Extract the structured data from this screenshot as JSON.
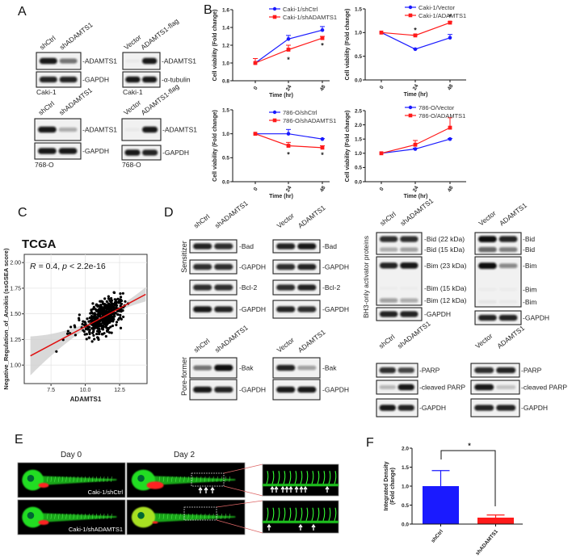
{
  "panel_labels": {
    "A": "A",
    "B": "B",
    "C": "C",
    "D": "D",
    "E": "E",
    "F": "F"
  },
  "blots": [
    {
      "lanes": [
        "shCtrl",
        "shADAMTS1"
      ],
      "cell_line": "Caki-1",
      "rows": [
        {
          "labels": [
            "ADAMTS1"
          ],
          "bands": [
            [
              0.95,
              0.55
            ]
          ]
        },
        {
          "labels": [
            "GAPDH"
          ],
          "bands": [
            [
              0.9,
              0.9
            ]
          ]
        }
      ]
    },
    {
      "lanes": [
        "Vector",
        "ADAMTS1-flag"
      ],
      "cell_line": "Caki-1",
      "rows": [
        {
          "labels": [
            "ADAMTS1"
          ],
          "bands": [
            [
              0.03,
              0.95
            ]
          ]
        },
        {
          "labels": [
            "α-tubulin"
          ],
          "bands": [
            [
              0.95,
              0.95
            ]
          ]
        }
      ]
    },
    {
      "lanes": [
        "shCtrl",
        "shADAMTS1"
      ],
      "cell_line": "768-O",
      "rows": [
        {
          "labels": [
            "ADAMTS1"
          ],
          "bands": [
            [
              0.95,
              0.3
            ]
          ]
        },
        {
          "labels": [
            "GAPDH"
          ],
          "bands": [
            [
              0.95,
              0.95
            ]
          ]
        }
      ]
    },
    {
      "lanes": [
        "Vector",
        "ADAMTS1-flag"
      ],
      "cell_line": "768-O",
      "rows": [
        {
          "labels": [
            "ADAMTS1"
          ],
          "bands": [
            [
              0.03,
              0.95
            ]
          ]
        },
        {
          "labels": [
            "GAPDH"
          ],
          "bands": [
            [
              0.95,
              0.9
            ]
          ]
        }
      ]
    },
    {
      "lanes": [
        "shCtrl",
        "shADAMTS1"
      ],
      "rows": [
        {
          "labels": [
            "Bad"
          ],
          "bands": [
            [
              0.9,
              0.85
            ]
          ]
        },
        {
          "labels": [
            "GAPDH"
          ],
          "bands": [
            [
              0.85,
              0.85
            ]
          ]
        },
        {
          "labels": [
            "Bcl-2"
          ],
          "bands": [
            [
              0.85,
              0.85
            ]
          ]
        },
        {
          "labels": [
            "GAPDH"
          ],
          "bands": [
            [
              0.95,
              0.9
            ]
          ]
        }
      ]
    },
    {
      "lanes": [
        "Vector",
        "ADAMTS1"
      ],
      "rows": [
        {
          "labels": [
            "Bad"
          ],
          "bands": [
            [
              0.9,
              0.95
            ]
          ]
        },
        {
          "labels": [
            "GAPDH"
          ],
          "bands": [
            [
              0.85,
              0.9
            ]
          ]
        },
        {
          "labels": [
            "Bcl-2"
          ],
          "bands": [
            [
              0.85,
              0.9
            ]
          ]
        },
        {
          "labels": [
            "GAPDH"
          ],
          "bands": [
            [
              0.9,
              0.85
            ]
          ]
        }
      ]
    },
    {
      "lanes": [
        "shCtrl",
        "shADAMTS1"
      ],
      "rows": [
        {
          "labels": [
            "Bak"
          ],
          "bands": [
            [
              0.55,
              1.0
            ]
          ]
        },
        {
          "labels": [
            "GAPDH"
          ],
          "bands": [
            [
              0.95,
              0.9
            ]
          ]
        }
      ]
    },
    {
      "lanes": [
        "Vector",
        "ADAMTS1"
      ],
      "rows": [
        {
          "labels": [
            "Bak"
          ],
          "bands": [
            [
              0.9,
              0.35
            ]
          ]
        },
        {
          "labels": [
            "GAPDH"
          ],
          "bands": [
            [
              0.95,
              0.95
            ]
          ]
        }
      ]
    },
    {
      "lanes": [
        "shCtrl",
        "shADAMTS1"
      ],
      "rows": [
        {
          "labels": [
            "Bid (22 kDa)",
            "Bid (15 kDa)"
          ],
          "bands": [
            [
              0.85,
              0.85
            ],
            [
              0.3,
              0.35
            ]
          ]
        },
        {
          "labels": [
            "Bim (23 kDa)",
            "Bim (15 kDa)",
            "Bim (12 kDa)"
          ],
          "bands": [
            [
              0.9,
              0.95
            ],
            [
              0.02,
              0.02
            ],
            [
              0.35,
              0.3
            ]
          ]
        },
        {
          "labels": [
            "GAPDH"
          ],
          "bands": [
            [
              0.9,
              0.9
            ]
          ]
        }
      ]
    },
    {
      "lanes": [
        "Vector",
        "ADAMTS1"
      ],
      "rows": [
        {
          "labels": [
            "Bid",
            "Bid"
          ],
          "bands": [
            [
              1.0,
              0.9
            ],
            [
              0.6,
              0.5
            ]
          ]
        },
        {
          "labels": [
            "Bim",
            "Bim",
            "Bim"
          ],
          "bands": [
            [
              1.0,
              0.45
            ],
            [
              0.02,
              0.02
            ],
            [
              0.05,
              0.03
            ]
          ]
        },
        {
          "labels": [
            "GAPDH"
          ],
          "bands": [
            [
              0.9,
              0.9
            ]
          ]
        }
      ]
    },
    {
      "lanes": [
        "shCtrl",
        "shADAMTS1"
      ],
      "rows": [
        {
          "labels": [
            "PARP"
          ],
          "bands": [
            [
              0.85,
              0.75
            ]
          ]
        },
        {
          "labels": [
            "cleaved PARP"
          ],
          "bands": [
            [
              0.25,
              0.95
            ]
          ]
        },
        {
          "labels": [
            "GAPDH"
          ],
          "bands": [
            [
              0.95,
              0.9
            ]
          ]
        }
      ]
    },
    {
      "lanes": [
        "Vector",
        "ADAMTS1"
      ],
      "rows": [
        {
          "labels": [
            "PARP"
          ],
          "bands": [
            [
              0.85,
              0.9
            ]
          ]
        },
        {
          "labels": [
            "cleaved PARP"
          ],
          "bands": [
            [
              0.95,
              0.2
            ]
          ]
        },
        {
          "labels": [
            "GAPDH"
          ],
          "bands": [
            [
              0.9,
              0.9
            ]
          ]
        }
      ]
    }
  ],
  "panel_d": {
    "sensitizer_label": "Sensitizer",
    "pore_former_label": "Pore-former",
    "bh3_label": "BH3-only activator proteins"
  },
  "panel_e": {
    "day0_label": "Day 0",
    "day2_label": "Day 2",
    "row_labels": [
      "Caki-1/shCtrl",
      "Caki-1/shADAMTS1"
    ],
    "arrow_counts": {
      "shCtrl_day2": 3,
      "shCtrl_zoom": 9,
      "shADAMTS1_zoom": 3
    }
  },
  "colors": {
    "blue": "#1a1aff",
    "red": "#ff1a1a",
    "fish_green": "#22dd22",
    "regression": "#e01010"
  },
  "chart_data": [
    {
      "type": "line",
      "x": [
        "0",
        "24",
        "48"
      ],
      "xlabel": "Time (hr)",
      "ylabel": "Cell viability (Fold change)",
      "ylim": [
        0.8,
        1.6
      ],
      "yticks": [
        "0.8",
        "1.0",
        "1.2",
        "1.4",
        "1.6"
      ],
      "series": [
        {
          "name": "Caki-1/shCtrl",
          "color": "#1a1aff",
          "marker": "circle",
          "values": [
            1.0,
            1.27,
            1.37
          ],
          "errors": [
            0.0,
            0.04,
            0.04
          ]
        },
        {
          "name": "Caki-1/shADAMTS1",
          "color": "#ff1a1a",
          "marker": "square",
          "values": [
            1.0,
            1.15,
            1.28
          ],
          "errors": [
            0.05,
            0.05,
            0.02
          ]
        }
      ],
      "significance": {
        "symbol": "*",
        "x_index": [
          1,
          2
        ],
        "placement": "below"
      }
    },
    {
      "type": "line",
      "x": [
        "0",
        "24",
        "48"
      ],
      "xlabel": "Time (hr)",
      "ylabel": "Cell viability (Fold change)",
      "ylim": [
        0.0,
        1.5
      ],
      "yticks": [
        "0.0",
        "0.5",
        "1.0",
        "1.5"
      ],
      "series": [
        {
          "name": "Caki-1/Vector",
          "color": "#1a1aff",
          "marker": "circle",
          "values": [
            1.0,
            0.65,
            0.89
          ],
          "errors": [
            0.0,
            0.01,
            0.07
          ]
        },
        {
          "name": "Caki-1/ADAMTS1",
          "color": "#ff1a1a",
          "marker": "square",
          "values": [
            1.0,
            0.94,
            1.21
          ],
          "errors": [
            0.0,
            0.01,
            0.02
          ]
        }
      ],
      "significance": {
        "symbol": "*",
        "x_index": [
          1,
          2
        ],
        "placement": "above"
      }
    },
    {
      "type": "line",
      "x": [
        "0",
        "24",
        "48"
      ],
      "xlabel": "Time (hr)",
      "ylabel": "Cell viability (Fold change)",
      "ylim": [
        0.0,
        1.5
      ],
      "yticks": [
        "0.0",
        "0.5",
        "1.0",
        "1.5"
      ],
      "series": [
        {
          "name": "786-O/shCtrl",
          "color": "#1a1aff",
          "marker": "circle",
          "values": [
            1.0,
            1.0,
            0.89
          ],
          "errors": [
            0.0,
            0.09,
            0.01
          ]
        },
        {
          "name": "786-O/shADAMTS1",
          "color": "#ff1a1a",
          "marker": "square",
          "values": [
            1.0,
            0.75,
            0.71
          ],
          "errors": [
            0.0,
            0.07,
            0.04
          ]
        }
      ],
      "significance": {
        "symbol": "*",
        "x_index": [
          1,
          2
        ],
        "placement": "below"
      }
    },
    {
      "type": "line",
      "x": [
        "0",
        "24",
        "48"
      ],
      "xlabel": "Time (hr)",
      "ylabel": "Cell viability (Fold change)",
      "ylim": [
        0.0,
        2.5
      ],
      "yticks": [
        "0.0",
        "0.5",
        "1.0",
        "1.5",
        "2.0",
        "2.5"
      ],
      "series": [
        {
          "name": "786-O/Vector",
          "color": "#1a1aff",
          "marker": "circle",
          "values": [
            1.0,
            1.15,
            1.5
          ],
          "errors": [
            0.0,
            0.03,
            0.02
          ]
        },
        {
          "name": "786-O/ADAMTS1",
          "color": "#ff1a1a",
          "marker": "square",
          "values": [
            1.0,
            1.3,
            1.9
          ],
          "errors": [
            0.0,
            0.15,
            0.35
          ]
        }
      ]
    },
    {
      "type": "scatter",
      "title": "TCGA",
      "xlabel": "ADAMTS1",
      "ylabel": "Negative_Regulation_of_Anoikis (ssGSEA score)",
      "annotation": {
        "r_label": "R",
        "r_value": "= 0.4,",
        "p_label": "p",
        "p_value": "< 2.2e-16"
      },
      "xlim": [
        5.55,
        14.5
      ],
      "ylim": [
        0.82,
        2.08
      ],
      "xticks": [
        "7.5",
        "10.0",
        "12.5"
      ],
      "yticks": [
        "1.00",
        "1.25",
        "1.50",
        "1.75",
        "2.00"
      ],
      "grid": true,
      "n_points_approx": 480,
      "point_cloud_center": [
        11.4,
        1.5
      ],
      "regression": {
        "x": [
          6.0,
          14.4
        ],
        "y": [
          1.09,
          1.69
        ]
      }
    },
    {
      "type": "bar",
      "categories": [
        "shCtrl",
        "shADAMTS1"
      ],
      "values": [
        1.0,
        0.17
      ],
      "errors": [
        0.41,
        0.07
      ],
      "colors": [
        "#1a1aff",
        "#ff1a1a"
      ],
      "ylabel": [
        "Integrated Density",
        "(Fold change)"
      ],
      "ylim": [
        0,
        2.0
      ],
      "yticks": [
        "0.0",
        "0.5",
        "1.0",
        "1.5",
        "2.0"
      ],
      "significance": "*"
    }
  ]
}
